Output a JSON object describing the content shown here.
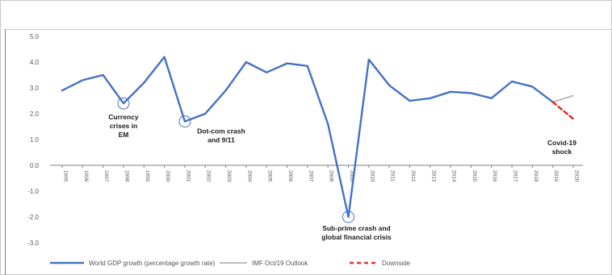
{
  "chart_data": {
    "type": "line",
    "title": "",
    "xlabel": "",
    "ylabel": "",
    "ylim": [
      -3.0,
      5.0
    ],
    "y_ticks": [
      "5.0",
      "4.0",
      "3.0",
      "2.0",
      "1.0",
      "0.0",
      "-1.0",
      "-2.0",
      "-3.0"
    ],
    "y_tick_values": [
      5,
      4,
      3,
      2,
      1,
      0,
      -1,
      -2,
      -3
    ],
    "grid": "vertical only along labels; no horizontal gridlines",
    "legend_position": "bottom",
    "categories": [
      "1995",
      "1996",
      "1997",
      "1998",
      "1999",
      "2000",
      "2001",
      "2002",
      "2003",
      "2004",
      "2005",
      "2006",
      "2007",
      "2008",
      "2009",
      "2010",
      "2011",
      "2012",
      "2013",
      "2014",
      "2015",
      "2016",
      "2017",
      "2018",
      "2019",
      "2020"
    ],
    "series": [
      {
        "name": "World GDP growth (percentage growth rate)",
        "color": "#4472c4",
        "style": "solid",
        "x": [
          "1995",
          "1996",
          "1997",
          "1998",
          "1999",
          "2000",
          "2001",
          "2002",
          "2003",
          "2004",
          "2005",
          "2006",
          "2007",
          "2008",
          "2009",
          "2010",
          "2011",
          "2012",
          "2013",
          "2014",
          "2015",
          "2016",
          "2017",
          "2018",
          "2019"
        ],
        "values": [
          2.9,
          3.3,
          3.5,
          2.4,
          3.2,
          4.2,
          1.7,
          2.0,
          2.9,
          4.0,
          3.6,
          3.95,
          3.85,
          1.6,
          -2.0,
          4.1,
          3.1,
          2.5,
          2.6,
          2.85,
          2.8,
          2.6,
          3.25,
          3.05,
          2.45
        ]
      },
      {
        "name": "IMF Oct/19 Outlook",
        "color": "#a6a6a6",
        "style": "solid",
        "x": [
          "2019",
          "2020"
        ],
        "values": [
          2.45,
          2.7
        ]
      },
      {
        "name": "Downside",
        "color": "#e03030",
        "style": "dashed",
        "x": [
          "2019",
          "2020"
        ],
        "values": [
          2.45,
          1.8
        ]
      }
    ],
    "annotations": [
      {
        "lines": [
          "Currency",
          "crises in",
          "EM"
        ],
        "x": "1998",
        "y": 2.4,
        "circled": true
      },
      {
        "lines": [
          "Dot-com crash",
          "and 9/11"
        ],
        "x": "2001",
        "y": 1.7,
        "circled": true
      },
      {
        "lines": [
          "Sub-prime  crash and",
          "global financial crisis"
        ],
        "x": "2009",
        "y": -2.0,
        "circled": true
      },
      {
        "lines": [
          "Covid-19",
          "shock"
        ],
        "x": "2020",
        "y": 1.8,
        "circled": false
      }
    ]
  },
  "colors": {
    "frame": "#c8c8c8",
    "axis": "#7f7f7f",
    "highlight_circle": "#4472c4"
  }
}
